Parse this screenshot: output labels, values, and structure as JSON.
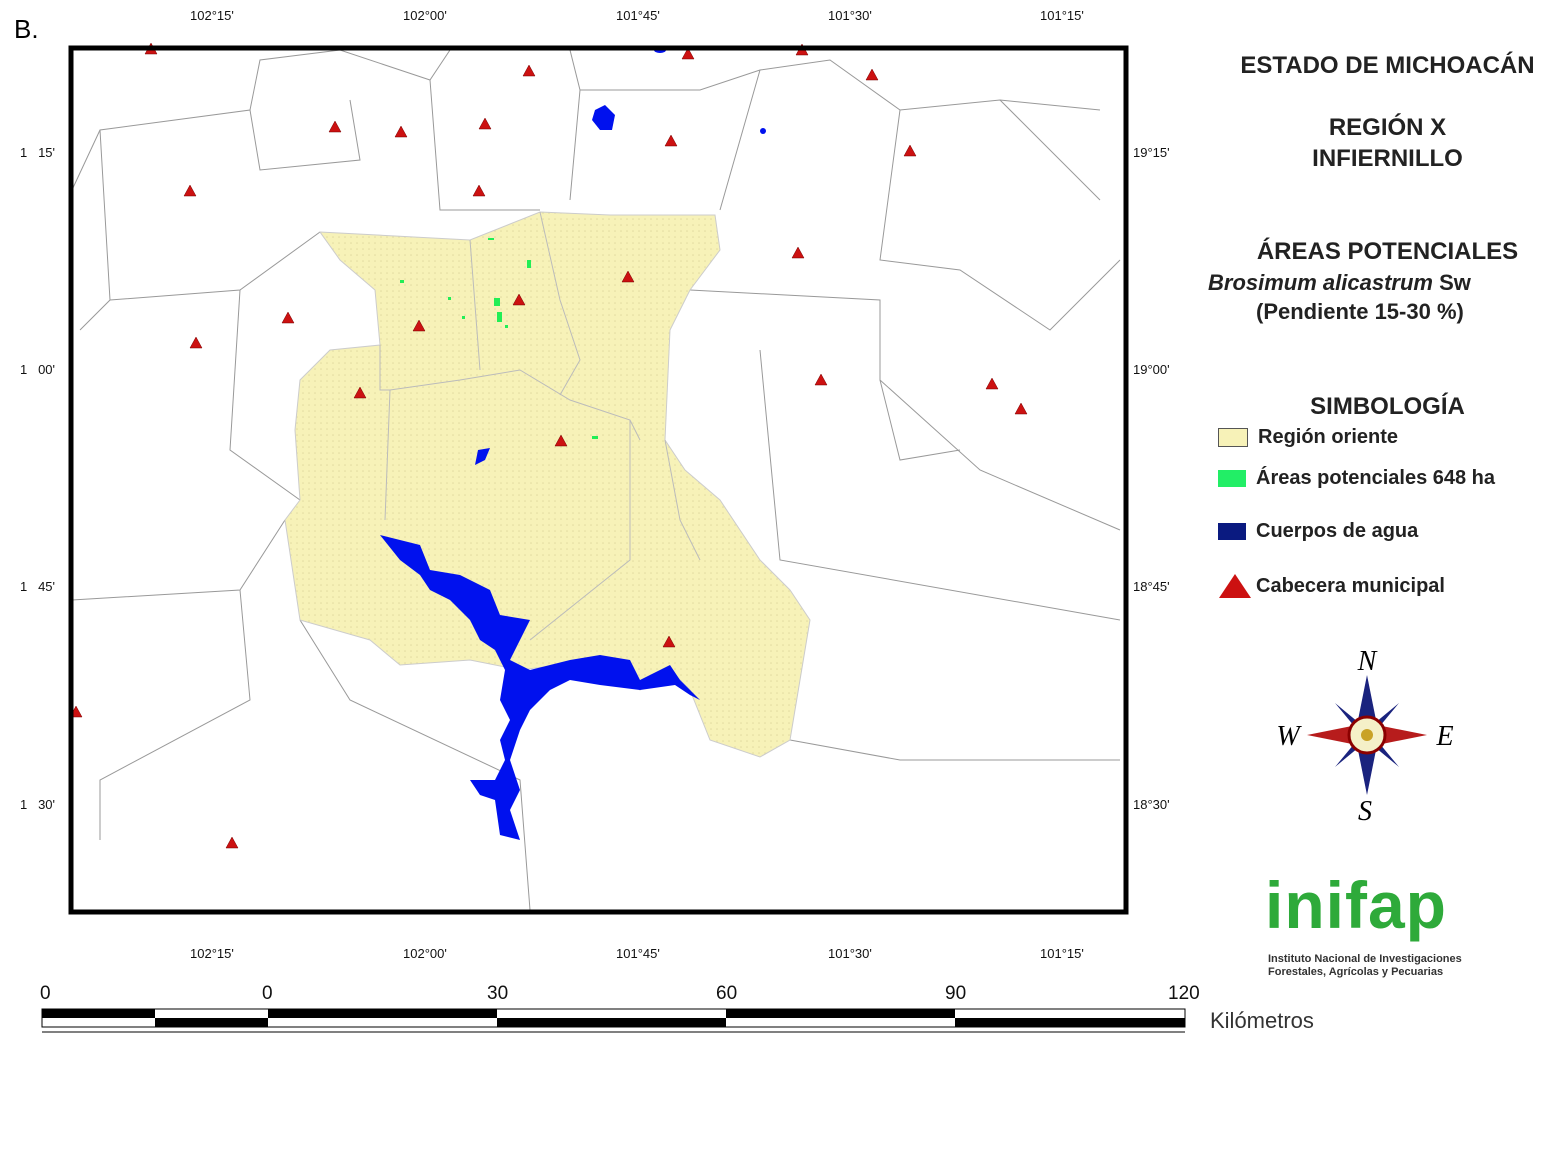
{
  "panel_label": "B.",
  "map": {
    "top_ticks": [
      "102°15'",
      "102°00'",
      "101°45'",
      "101°30'",
      "101°15'"
    ],
    "bottom_ticks": [
      "102°15'",
      "102°00'",
      "101°45'",
      "101°30'",
      "101°15'"
    ],
    "left_ticks": [
      "1   15'",
      "1   00'",
      "1   45'",
      "1   30'"
    ],
    "right_ticks": [
      "19°15'",
      "19°00'",
      "18°45'",
      "18°30'"
    ],
    "colors": {
      "region": "#f7f2b8",
      "potential_areas": "#22dd55",
      "water": "#0011ee",
      "cabecera": "#cc1111",
      "frame": "#000000"
    }
  },
  "titles": {
    "state": "ESTADO DE MICHOACÁN",
    "region": "REGIÓN X",
    "region_name": "INFIERNILLO",
    "subject": "ÁREAS POTENCIALES",
    "species_italic": "Brosimum alicastrum",
    "species_author": " Sw",
    "slope": "(Pendiente 15-30 %)"
  },
  "legend": {
    "title": "SIMBOLOGÍA",
    "items": [
      {
        "label": "Región oriente",
        "color": "#f7f2b8",
        "symbol": "box"
      },
      {
        "label": "Áreas potenciales 648 ha",
        "color": "#22ee66",
        "symbol": "box"
      },
      {
        "label": "Cuerpos de agua",
        "color": "#0a1a80",
        "symbol": "box"
      },
      {
        "label": "Cabecera municipal",
        "color": "#cc1111",
        "symbol": "triangle"
      }
    ]
  },
  "compass": {
    "n": "N",
    "s": "S",
    "e": "E",
    "w": "W"
  },
  "logo": {
    "name": "inifap",
    "line1": "Instituto Nacional de Investigaciones",
    "line2": "Forestales, Agrícolas y Pecuarias"
  },
  "scale_bar": {
    "labels": [
      "0",
      "0",
      "30",
      "60",
      "90",
      "120"
    ],
    "unit": "Kilómetros"
  }
}
